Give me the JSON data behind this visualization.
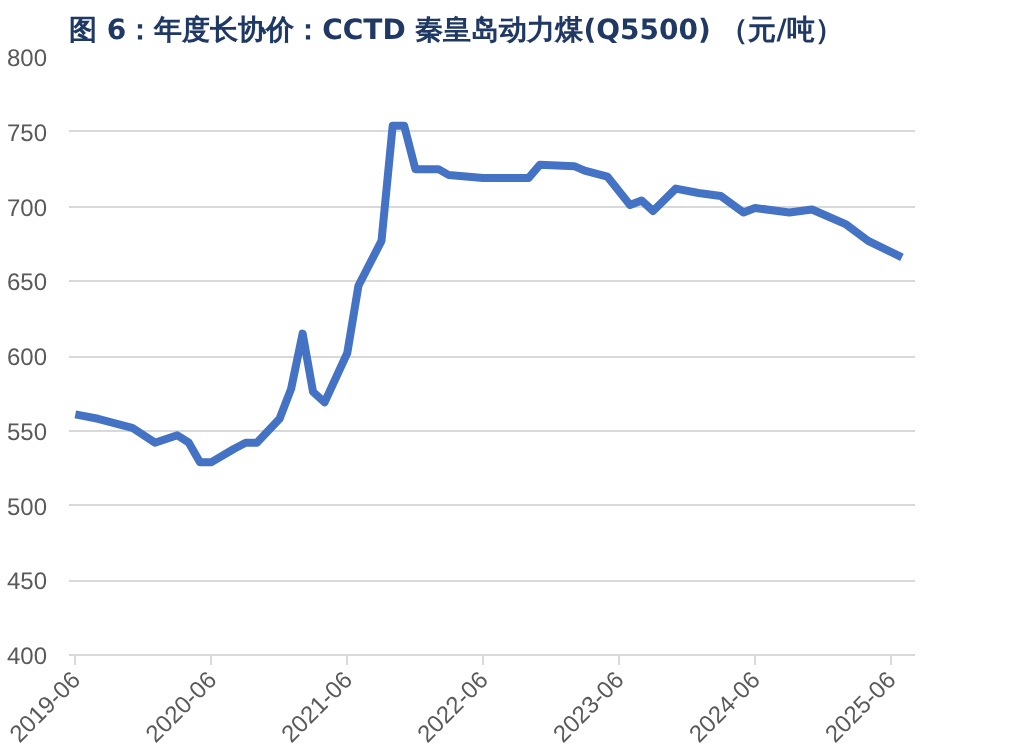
{
  "chart_data": {
    "type": "line",
    "title": "图 6：年度长协价：CCTD 秦皇岛动力煤(Q5500)  （元/吨）",
    "x": [
      "2019-06",
      "2019-08",
      "2019-11",
      "2020-01",
      "2020-03",
      "2020-04",
      "2020-05",
      "2020-06",
      "2020-08",
      "2020-09",
      "2020-10",
      "2020-12",
      "2021-01",
      "2021-02",
      "2021-03",
      "2021-04",
      "2021-06",
      "2021-07",
      "2021-09",
      "2021-10",
      "2021-11",
      "2021-12",
      "2022-02",
      "2022-03",
      "2022-06",
      "2022-10",
      "2022-11",
      "2023-02",
      "2023-03",
      "2023-05",
      "2023-07",
      "2023-08",
      "2023-09",
      "2023-11",
      "2024-01",
      "2024-03",
      "2024-05",
      "2024-06",
      "2024-09",
      "2024-11",
      "2025-02",
      "2025-04",
      "2025-07"
    ],
    "series": [
      {
        "color": "#4472c4",
        "values": [
          561,
          558,
          552,
          542,
          547,
          542,
          529,
          529,
          538,
          542,
          542,
          558,
          578,
          615,
          576,
          569,
          602,
          647,
          677,
          754,
          754,
          725,
          725,
          721,
          719,
          719,
          728,
          727,
          724,
          720,
          701,
          704,
          697,
          712,
          709,
          707,
          696,
          699,
          696,
          698,
          688,
          677,
          666
        ]
      }
    ],
    "xlim": [
      "2019-05-15",
      "2025-08-05"
    ],
    "xticks": [
      "2019-06",
      "2020-06",
      "2021-06",
      "2022-06",
      "2023-06",
      "2024-06",
      "2025-06"
    ],
    "ylim": [
      400,
      800
    ],
    "yticks": [
      400,
      450,
      500,
      550,
      600,
      650,
      700,
      750,
      800
    ],
    "grid": "y",
    "marker": "none",
    "line_style": "solid"
  }
}
